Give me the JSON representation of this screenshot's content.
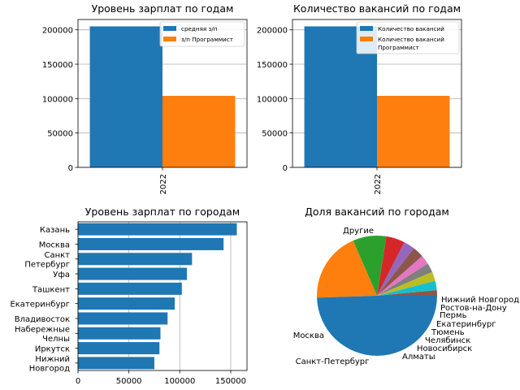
{
  "colors": {
    "blue": "#1f77b4",
    "orange": "#ff7f0e",
    "grid": "#b0b0b0"
  },
  "chart_data": [
    {
      "type": "bar",
      "title": "Уровень зарплат по годам",
      "categories": [
        "2022"
      ],
      "series": [
        {
          "name": "средняя з/п",
          "values": [
            205000
          ],
          "color": "#1f77b4"
        },
        {
          "name": "з/п Программист",
          "values": [
            104000
          ],
          "color": "#ff7f0e"
        }
      ],
      "ylim": [
        0,
        215000
      ],
      "yticks": [
        0,
        50000,
        100000,
        150000,
        200000
      ],
      "grid": "y",
      "legend": "top-right"
    },
    {
      "type": "bar",
      "title": "Количество вакансий по годам",
      "categories": [
        "2022"
      ],
      "series": [
        {
          "name": "Количество вакансий",
          "values": [
            205000
          ],
          "color": "#1f77b4"
        },
        {
          "name": "Количество вакансий\nПрограммист",
          "values": [
            104000
          ],
          "color": "#ff7f0e"
        }
      ],
      "ylim": [
        0,
        215000
      ],
      "yticks": [
        0,
        50000,
        100000,
        150000,
        200000
      ],
      "grid": "y",
      "legend": "top-right"
    },
    {
      "type": "bar",
      "orientation": "horizontal",
      "title": "Уровень зарплат по городам",
      "categories": [
        "Казань",
        "Москва",
        "Санкт\nПетербург",
        "Уфа",
        "Ташкент",
        "Екатеринбург",
        "Владивосток",
        "Набережные\nЧелны",
        "Иркутск",
        "Нижний\nНовгород"
      ],
      "values": [
        156000,
        143000,
        112000,
        107000,
        102000,
        95000,
        88000,
        81000,
        80000,
        75000
      ],
      "xlim": [
        0,
        166000
      ],
      "xticks": [
        0,
        50000,
        100000,
        150000
      ],
      "grid": "x"
    },
    {
      "type": "pie",
      "title": "Доля вакансий по городам",
      "labels": [
        "Нижний Новгород",
        "Ростов-на-Дону",
        "Пермь",
        "Екатеринбург",
        "Тюмень",
        "Челябинск",
        "Новосибирск",
        "Алматы",
        "Санкт-Петербург",
        "Москва",
        "Другие"
      ],
      "values": [
        1.5,
        2.5,
        2.5,
        2.5,
        2.5,
        3,
        3,
        5,
        9,
        19,
        49.5
      ],
      "colors": [
        "#8c564b",
        "#17becf",
        "#bcbd22",
        "#7f7f7f",
        "#e377c2",
        "#8c564b",
        "#9467bd",
        "#d62728",
        "#2ca02c",
        "#ff7f0e",
        "#1f77b4"
      ]
    }
  ]
}
